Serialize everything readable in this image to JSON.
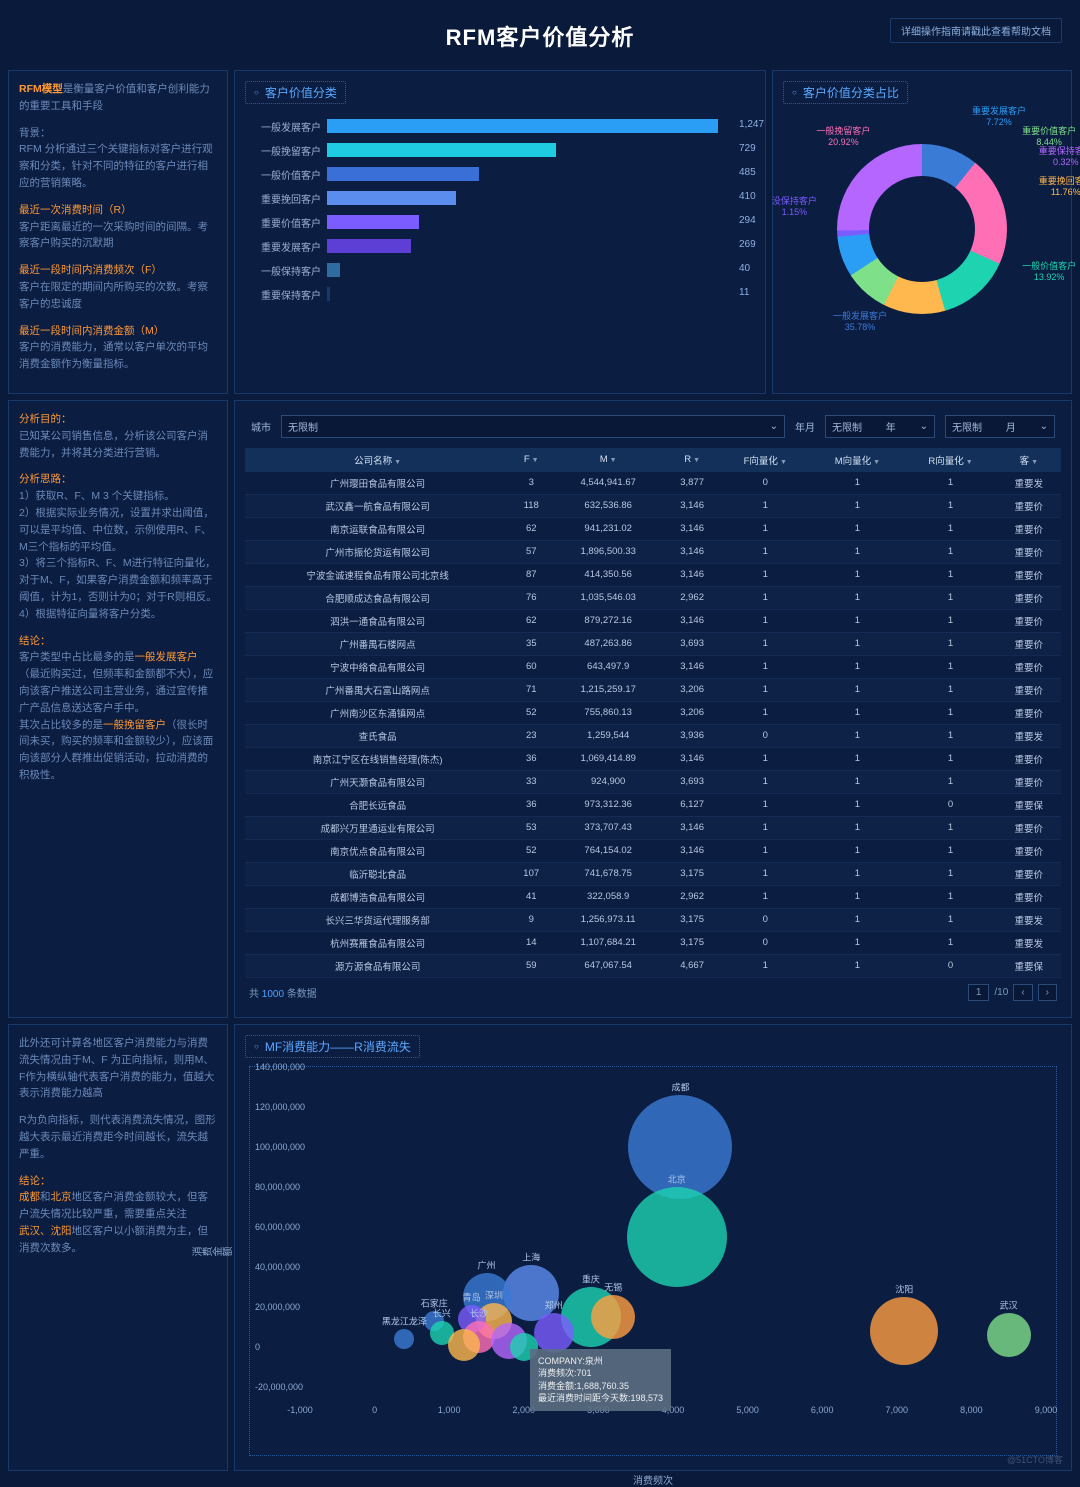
{
  "header": {
    "title": "RFM客户价值分析",
    "help": "详细操作指南请戳此查看帮助文档"
  },
  "intro": {
    "line1_a": "RFM模型",
    "line1_b": "是衡量客户价值和客户创利能力的重要工具和手段",
    "bg_title": "背景：",
    "bg_text": "RFM 分析通过三个关键指标对客户进行观察和分类，针对不同的特征的客户进行相应的营销策略。",
    "r_title": "最近一次消费时间（R）",
    "r_text": "客户距离最近的一次采购时间的间隔。考察客户购买的沉默期",
    "f_title": "最近一段时间内消费频次（F）",
    "f_text": "客户在限定的期间内所购买的次数。考察客户的忠诚度",
    "m_title": "最近一段时间内消费金额（M）",
    "m_text": "客户的消费能力，通常以客户单次的平均消费金额作为衡量指标。"
  },
  "analysis": {
    "p_title": "分析目的：",
    "p_text": "已知某公司销售信息，分析该公司客户消费能力，并将其分类进行营销。",
    "t_title": "分析思路：",
    "t1": "1）获取R、F、M 3 个关键指标。",
    "t2": "2）根据实际业务情况，设置并求出阈值，可以是平均值、中位数，示例使用R、F、M三个指标的平均值。",
    "t3": "3）将三个指标R、F、M进行特征向量化，对于M、F，如果客户消费金额和频率高于阈值，计为1，否则计为0；对于R则相反。",
    "t4": "4）根据特征向量将客户分类。",
    "c_title": "结论：",
    "c1a": "客户类型中占比最多的是",
    "c1b": "一般发展客户",
    "c1c": "（最近购买过，但频率和金额都不大），应向该客户推送公司主营业务，通过宣传推广产品信息送达客户手中。",
    "c2a": "其次占比较多的是",
    "c2b": "一般挽留客户",
    "c2c": "（很长时间未买，购买的频率和金额较少），应该面向该部分人群推出促销活动，拉动消费的积极性。"
  },
  "scatter_intro": {
    "p1": "此外还可计算各地区客户消费能力与消费流失情况由于M、F 为正向指标，则用M、F作为横纵轴代表客户消费的能力，值越大表示消费能力越高",
    "p2": "R为负向指标，则代表消费流失情况，图形越大表示最近消费距今时间越长，流失越严重。",
    "c_title": "结论：",
    "c1a": "成都",
    "c1b": "和",
    "c1c": "北京",
    "c1d": "地区客户消费金额较大，但客户流失情况比较严重，需要重点关注",
    "c2a": "武汉、沈阳",
    "c2b": "地区客户以小额消费为主，但消费次数多。"
  },
  "bar_chart": {
    "title": "客户价值分类",
    "max": 1300,
    "bars": [
      {
        "label": "一般发展客户",
        "value": 1247,
        "color": "#2a9df4"
      },
      {
        "label": "一般挽留客户",
        "value": 729,
        "color": "#1ecbe1"
      },
      {
        "label": "一般价值客户",
        "value": 485,
        "color": "#3a6fd8"
      },
      {
        "label": "重要挽回客户",
        "value": 410,
        "color": "#5b8def"
      },
      {
        "label": "重要价值客户",
        "value": 294,
        "color": "#7a5cff"
      },
      {
        "label": "重要发展客户",
        "value": 269,
        "color": "#5e3fd6"
      },
      {
        "label": "一般保持客户",
        "value": 40,
        "color": "#2e6b9e"
      },
      {
        "label": "重要保持客户",
        "value": 11,
        "color": "#163a6a"
      }
    ]
  },
  "donut": {
    "title": "客户价值分类占比",
    "slices": [
      {
        "label": "一般发展客户",
        "pct": "35.78%",
        "color": "#3a7bd5"
      },
      {
        "label": "一般挽留客户",
        "pct": "20.92%",
        "color": "#ff6fb5"
      },
      {
        "label": "一般价值客户",
        "pct": "13.92%",
        "color": "#1dd3b0"
      },
      {
        "label": "重要挽回客户",
        "pct": "11.76%",
        "color": "#ffb84d"
      },
      {
        "label": "重要价值客户",
        "pct": "8.44%",
        "color": "#7fe08a"
      },
      {
        "label": "重要发展客户",
        "pct": "7.72%",
        "color": "#2a9df4"
      },
      {
        "label": "没保持客户",
        "pct": "1.15%",
        "color": "#7a5cff"
      },
      {
        "label": "重要保持客户",
        "pct": "0.32%",
        "color": "#b566ff"
      }
    ]
  },
  "filters": {
    "city_lbl": "城市",
    "city_val": "无限制",
    "ym_lbl": "年月",
    "y_val": "无限制",
    "y_suffix": "年",
    "m_val": "无限制",
    "m_suffix": "月"
  },
  "table": {
    "cols": [
      "公司名称",
      "F",
      "M",
      "R",
      "F向量化",
      "M向量化",
      "R向量化",
      "客"
    ],
    "rows": [
      [
        "广州璎田食品有限公司",
        "3",
        "4,544,941.67",
        "3,877",
        "0",
        "1",
        "1",
        "重要发"
      ],
      [
        "武汉鑫一航食品有限公司",
        "118",
        "632,536.86",
        "3,146",
        "1",
        "1",
        "1",
        "重要价"
      ],
      [
        "南京运联食品有限公司",
        "62",
        "941,231.02",
        "3,146",
        "1",
        "1",
        "1",
        "重要价"
      ],
      [
        "广州市振伦货运有限公司",
        "57",
        "1,896,500.33",
        "3,146",
        "1",
        "1",
        "1",
        "重要价"
      ],
      [
        "宁波金诚速程食品有限公司北京线",
        "87",
        "414,350.56",
        "3,146",
        "1",
        "1",
        "1",
        "重要价"
      ],
      [
        "合肥顺成达食品有限公司",
        "76",
        "1,035,546.03",
        "2,962",
        "1",
        "1",
        "1",
        "重要价"
      ],
      [
        "泗洪一通食品有限公司",
        "62",
        "879,272.16",
        "3,146",
        "1",
        "1",
        "1",
        "重要价"
      ],
      [
        "广州番禺石楼网点",
        "35",
        "487,263.86",
        "3,693",
        "1",
        "1",
        "1",
        "重要价"
      ],
      [
        "宁波中络食品有限公司",
        "60",
        "643,497.9",
        "3,146",
        "1",
        "1",
        "1",
        "重要价"
      ],
      [
        "广州番禺大石富山路网点",
        "71",
        "1,215,259.17",
        "3,206",
        "1",
        "1",
        "1",
        "重要价"
      ],
      [
        "广州南沙区东涌镇网点",
        "52",
        "755,860.13",
        "3,206",
        "1",
        "1",
        "1",
        "重要价"
      ],
      [
        "查氏食品",
        "23",
        "1,259,544",
        "3,936",
        "0",
        "1",
        "1",
        "重要发"
      ],
      [
        "南京江宁区在线销售经理(陈杰)",
        "36",
        "1,069,414.89",
        "3,146",
        "1",
        "1",
        "1",
        "重要价"
      ],
      [
        "广州天灏食品有限公司",
        "33",
        "924,900",
        "3,693",
        "1",
        "1",
        "1",
        "重要价"
      ],
      [
        "合肥长远食品",
        "36",
        "973,312.36",
        "6,127",
        "1",
        "1",
        "0",
        "重要保"
      ],
      [
        "成都兴万里通运业有限公司",
        "53",
        "373,707.43",
        "3,146",
        "1",
        "1",
        "1",
        "重要价"
      ],
      [
        "南京优点食品有限公司",
        "52",
        "764,154.02",
        "3,146",
        "1",
        "1",
        "1",
        "重要价"
      ],
      [
        "临沂聪北食品",
        "107",
        "741,678.75",
        "3,175",
        "1",
        "1",
        "1",
        "重要价"
      ],
      [
        "成都博浩食品有限公司",
        "41",
        "322,058.9",
        "2,962",
        "1",
        "1",
        "1",
        "重要价"
      ],
      [
        "长兴三华货运代理服务部",
        "9",
        "1,256,973.11",
        "3,175",
        "0",
        "1",
        "1",
        "重要发"
      ],
      [
        "杭州赛雁食品有限公司",
        "14",
        "1,107,684.21",
        "3,175",
        "0",
        "1",
        "1",
        "重要发"
      ],
      [
        "源方源食品有限公司",
        "59",
        "647,067.54",
        "4,667",
        "1",
        "1",
        "0",
        "重要保"
      ]
    ],
    "total_prefix": "共",
    "total_count": "1000",
    "total_suffix": "条数据",
    "page": "1",
    "pages": "/10"
  },
  "scatter": {
    "title": "MF消费能力——R消费流失",
    "y_axis_title": "消费金额",
    "x_axis_title": "消费频次",
    "y_ticks": [
      "-20,000,000",
      "0",
      "20,000,000",
      "40,000,000",
      "60,000,000",
      "80,000,000",
      "100,000,000",
      "120,000,000",
      "140,000,000"
    ],
    "x_ticks": [
      "-1,000",
      "0",
      "1,000",
      "2,000",
      "3,000",
      "4,000",
      "5,000",
      "6,000",
      "7,000",
      "8,000",
      "9,000"
    ],
    "bubbles": [
      {
        "label": "成都",
        "x": 4100,
        "y": 105000000,
        "r": 52,
        "color": "#3a7bd5"
      },
      {
        "label": "北京",
        "x": 4050,
        "y": 60000000,
        "r": 50,
        "color": "#1dd3b0"
      },
      {
        "label": "上海",
        "x": 2100,
        "y": 32000000,
        "r": 28,
        "color": "#5b8def"
      },
      {
        "label": "广州",
        "x": 1500,
        "y": 30000000,
        "r": 24,
        "color": "#3a7bd5"
      },
      {
        "label": "重庆",
        "x": 2900,
        "y": 20000000,
        "r": 30,
        "color": "#1dd3b0"
      },
      {
        "label": "无锡",
        "x": 3200,
        "y": 20000000,
        "r": 22,
        "color": "#ff9f40"
      },
      {
        "label": "沈阳",
        "x": 7100,
        "y": 13000000,
        "r": 34,
        "color": "#ff9f40"
      },
      {
        "label": "武汉",
        "x": 8500,
        "y": 11000000,
        "r": 22,
        "color": "#7fe08a"
      },
      {
        "label": "深圳",
        "x": 1600,
        "y": 18000000,
        "r": 18,
        "color": "#ffb84d"
      },
      {
        "label": "青岛",
        "x": 1300,
        "y": 19000000,
        "r": 14,
        "color": "#7a5cff"
      },
      {
        "label": "石家庄",
        "x": 800,
        "y": 18000000,
        "r": 10,
        "color": "#3a7bd5"
      },
      {
        "label": "长沙",
        "x": 1400,
        "y": 10000000,
        "r": 16,
        "color": "#ff6fb5"
      },
      {
        "label": "郑州",
        "x": 2400,
        "y": 12000000,
        "r": 20,
        "color": "#7a5cff"
      },
      {
        "label": "长兴",
        "x": 900,
        "y": 12000000,
        "r": 12,
        "color": "#1dd3b0"
      },
      {
        "label": "黑龙江龙泽",
        "x": 400,
        "y": 9000000,
        "r": 10,
        "color": "#3a7bd5"
      },
      {
        "label": "",
        "x": 1800,
        "y": 8000000,
        "r": 18,
        "color": "#b566ff"
      },
      {
        "label": "",
        "x": 1200,
        "y": 6000000,
        "r": 16,
        "color": "#ffb84d"
      },
      {
        "label": "",
        "x": 2000,
        "y": 5000000,
        "r": 14,
        "color": "#1dd3b0"
      }
    ],
    "tooltip": {
      "l1": "COMPANY:泉州",
      "l2": "消费频次:701",
      "l3": "消费金额:1,688,760.35",
      "l4": "最近消费时间距今天数:198,573"
    }
  },
  "watermark": "@51CTO博客"
}
